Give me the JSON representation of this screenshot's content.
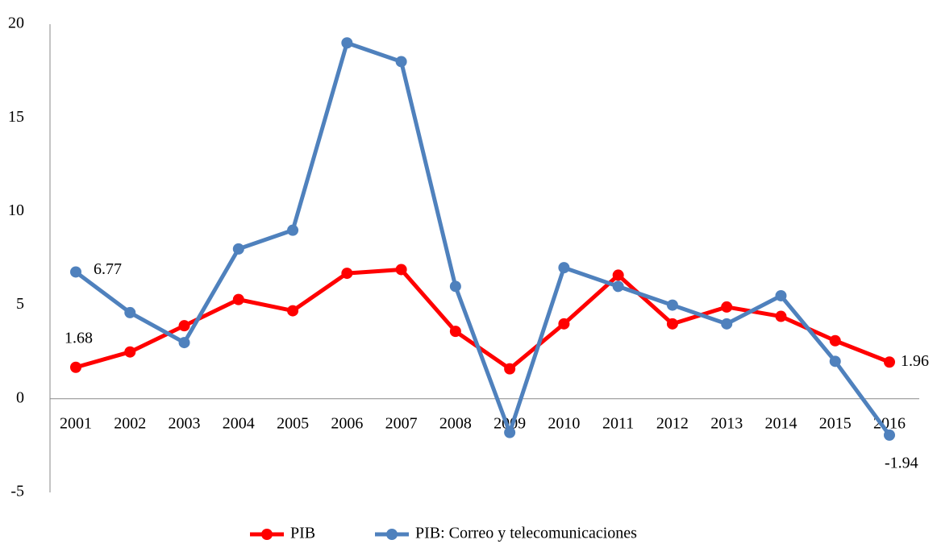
{
  "chart_data": {
    "type": "line",
    "categories": [
      "2001",
      "2002",
      "2003",
      "2004",
      "2005",
      "2006",
      "2007",
      "2008",
      "2009",
      "2010",
      "2011",
      "2012",
      "2013",
      "2014",
      "2015",
      "2016"
    ],
    "series": [
      {
        "name": "PIB",
        "color": "#ff0000",
        "values": [
          1.68,
          2.5,
          3.9,
          5.3,
          4.7,
          6.7,
          6.9,
          3.6,
          1.6,
          4.0,
          6.6,
          4.0,
          4.9,
          4.4,
          3.1,
          1.96
        ],
        "value_labels": [
          "1.68",
          null,
          null,
          null,
          null,
          null,
          null,
          null,
          null,
          null,
          null,
          null,
          null,
          null,
          null,
          "1.96"
        ]
      },
      {
        "name": "PIB: Correo y telecomunicaciones",
        "color": "#4f81bd",
        "values": [
          6.77,
          4.6,
          3.0,
          8.0,
          9.0,
          19.0,
          18.0,
          6.0,
          -1.8,
          7.0,
          6.0,
          5.0,
          4.0,
          5.5,
          2.0,
          -1.94
        ],
        "value_labels": [
          "6.77",
          null,
          null,
          null,
          null,
          null,
          null,
          null,
          null,
          null,
          null,
          null,
          null,
          null,
          null,
          "-1.94"
        ]
      }
    ],
    "ylim": [
      -5,
      20
    ],
    "yticks": [
      -5,
      0,
      5,
      10,
      15,
      20
    ],
    "grid": false,
    "legend": "bottom"
  }
}
